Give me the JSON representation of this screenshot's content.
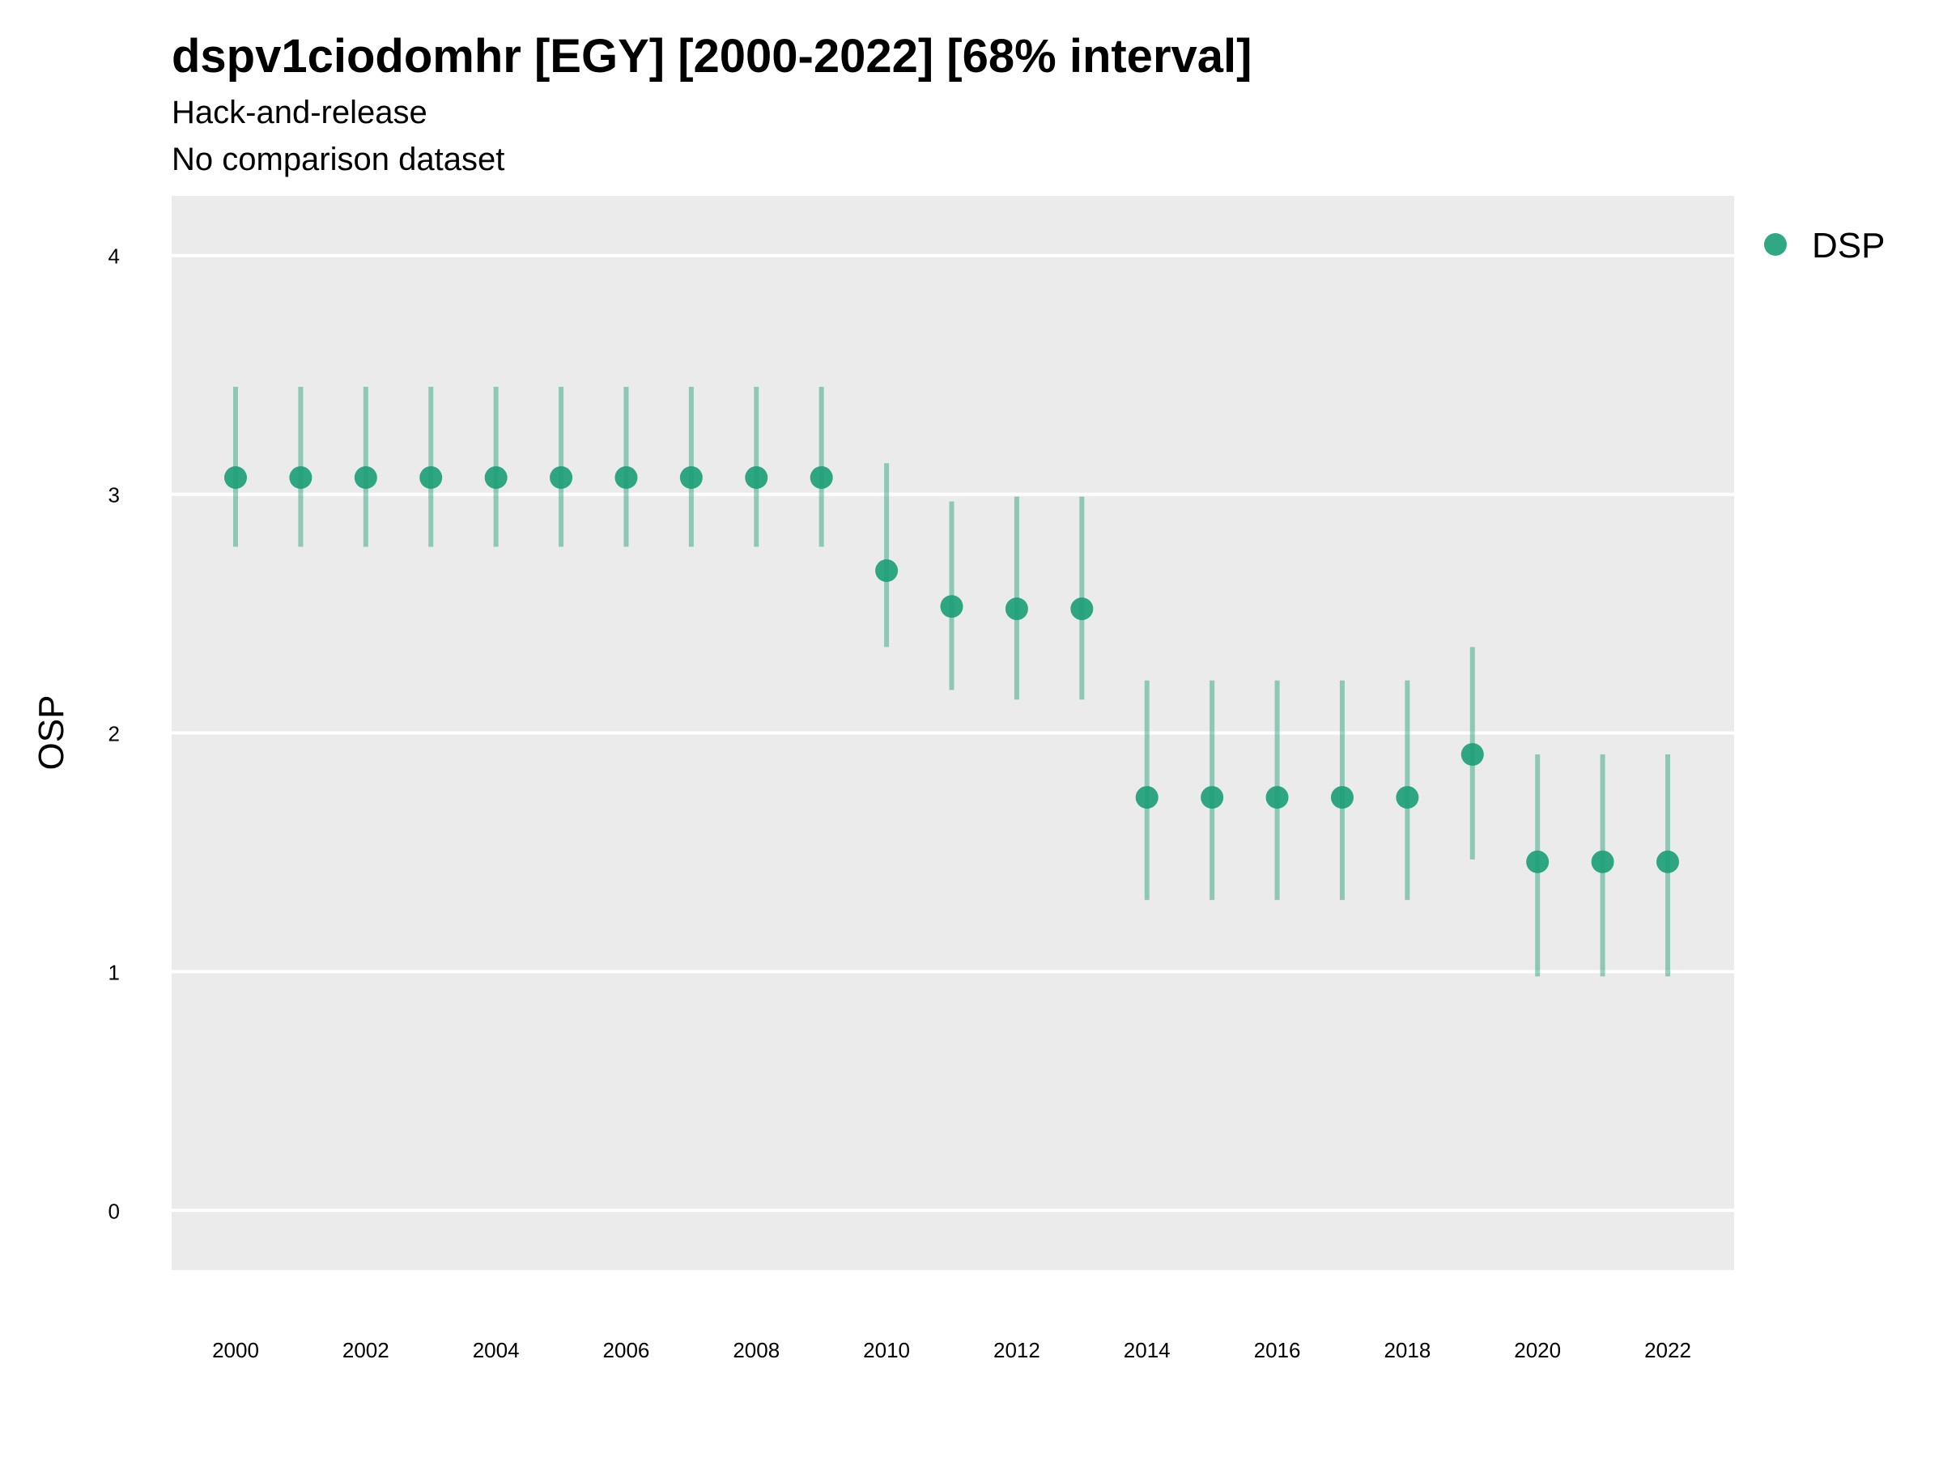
{
  "chart_data": {
    "type": "scatter",
    "title": "dspv1ciodomhr [EGY] [2000-2022] [68% interval]",
    "subtitle": [
      "Hack-and-release",
      "No comparison dataset"
    ],
    "xlabel": "",
    "ylabel": "OSP",
    "ylim": [
      -0.25,
      4.25
    ],
    "y_ticks": [
      0,
      1,
      2,
      3,
      4
    ],
    "x_ticks": [
      2000,
      2002,
      2004,
      2006,
      2008,
      2010,
      2012,
      2014,
      2016,
      2018,
      2020,
      2022
    ],
    "xlim": [
      1999,
      2023
    ],
    "grid": "horizontal major lines",
    "legend_position": "right",
    "colors": {
      "series": "#1b9e77",
      "panel": "#ebebeb",
      "grid": "#ffffff"
    },
    "series": [
      {
        "name": "DSP",
        "x": [
          2000,
          2001,
          2002,
          2003,
          2004,
          2005,
          2006,
          2007,
          2008,
          2009,
          2010,
          2011,
          2012,
          2013,
          2014,
          2015,
          2016,
          2017,
          2018,
          2019,
          2020,
          2021,
          2022
        ],
        "y": [
          3.07,
          3.07,
          3.07,
          3.07,
          3.07,
          3.07,
          3.07,
          3.07,
          3.07,
          3.07,
          2.68,
          2.53,
          2.52,
          2.52,
          1.73,
          1.73,
          1.73,
          1.73,
          1.73,
          1.91,
          1.46,
          1.46,
          1.46
        ],
        "lower": [
          2.78,
          2.78,
          2.78,
          2.78,
          2.78,
          2.78,
          2.78,
          2.78,
          2.78,
          2.78,
          2.36,
          2.18,
          2.14,
          2.14,
          1.3,
          1.3,
          1.3,
          1.3,
          1.3,
          1.47,
          0.98,
          0.98,
          0.98
        ],
        "upper": [
          3.45,
          3.45,
          3.45,
          3.45,
          3.45,
          3.45,
          3.45,
          3.45,
          3.45,
          3.45,
          3.13,
          2.97,
          2.99,
          2.99,
          2.22,
          2.22,
          2.22,
          2.22,
          2.22,
          2.36,
          1.91,
          1.91,
          1.91
        ]
      }
    ]
  }
}
